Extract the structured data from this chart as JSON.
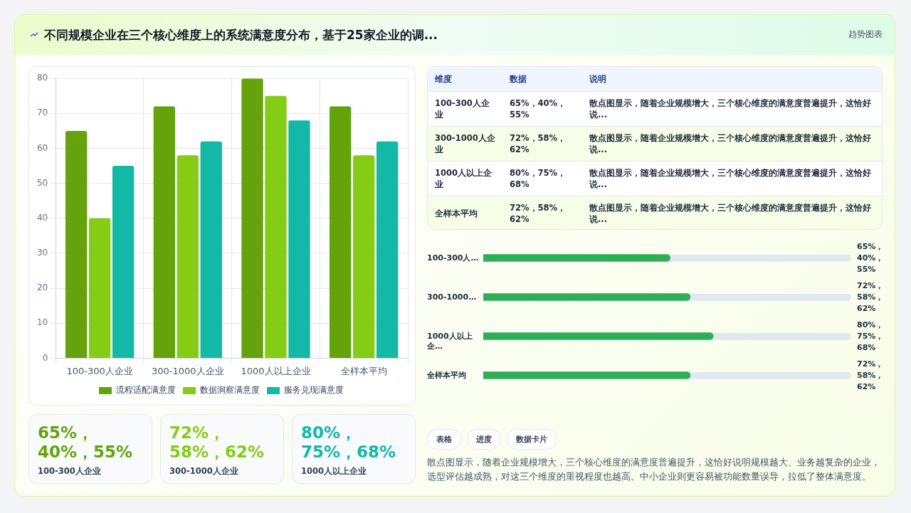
{
  "chart_data": [
    {
      "type": "bar",
      "title": "不同规模企业在三个核心维度上的系统满意度分布，基于25家企业的调...",
      "categories": [
        "100-300人企业",
        "300-1000人企业",
        "1000人以上企业",
        "全样本平均"
      ],
      "series": [
        {
          "name": "流程适配满意度",
          "color": "#65a30d",
          "values": [
            65,
            72,
            80,
            72
          ]
        },
        {
          "name": "数据洞察满意度",
          "color": "#84cc16",
          "values": [
            40,
            58,
            75,
            58
          ]
        },
        {
          "name": "服务兑现满意度",
          "color": "#14b8a6",
          "values": [
            55,
            62,
            68,
            62
          ]
        }
      ],
      "ylim": [
        0,
        80
      ],
      "yticks": [
        0,
        10,
        20,
        30,
        40,
        50,
        60,
        70,
        80
      ],
      "grid": true,
      "legend": "bottom",
      "annotations": [
        "趋势图表",
        "表格",
        "进度",
        "数据卡片",
        "散点图显示，随着企业规模增大，三个核心维度的满意度普遍提升，这恰好说明规模越大、业务越复杂的企业，选型评估越成熟，对这三个维度的重视程度也越高。中小企业则更容易被功能数量误导，拉低了整体满意度。"
      ]
    },
    {
      "type": "other",
      "categories": [
        "100-300人企业",
        "300-1000人企业",
        "1000人以上企业",
        "全样本平均"
      ],
      "value_labels": [
        "65%，40%，55%",
        "72%，58%，62%",
        "80%，75%，68%",
        "72%，58%，62%"
      ],
      "annotations": [
        "维度",
        "数据",
        "说明",
        "散点图显示，随着企业规模增大，三个核心维度的满意度普遍提升，这恰好说...",
        "散点图显示，随着企业规模增大，三个核心维度的满意度普遍提升，这恰好说...",
        "散点图显示，随着企业规模增大，三个核心维度的满意度普遍提升，这恰好说...",
        "散点图显示，随着企业规模增大，三个核心维度的满意度普遍提升，这恰好说..."
      ]
    },
    {
      "type": "bar",
      "orientation": "horizontal",
      "xlim": [
        0,
        128
      ],
      "tick_labels": false,
      "categories": [
        "100-300人…",
        "300-1000…",
        "1000人以上企…",
        "全样本平均"
      ],
      "values": [
        65,
        72,
        80,
        72
      ],
      "color": "#2fae5a",
      "value_labels": [
        "65%，40%，55%",
        "72%，58%，62%",
        "80%，75%，68%",
        "72%，58%，62%"
      ]
    },
    {
      "type": "other",
      "categories": [
        "100-300人企业",
        "300-1000人企业",
        "1000人以上企业"
      ],
      "value_labels": [
        "65%，40%，55%",
        "72%，58%，62%",
        "80%，75%，68%"
      ]
    }
  ]
}
